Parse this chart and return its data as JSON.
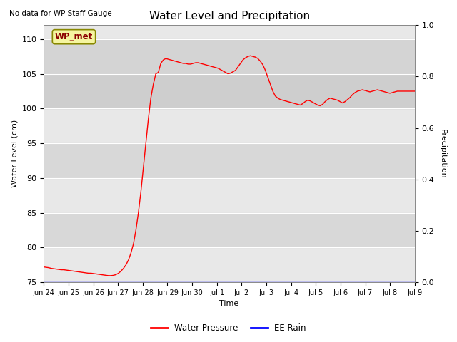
{
  "title": "Water Level and Precipitation",
  "top_left_text": "No data for WP Staff Gauge",
  "ylabel_left": "Water Level (cm)",
  "ylabel_right": "Precipitation",
  "xlabel": "Time",
  "legend_entries": [
    "Water Pressure",
    "EE Rain"
  ],
  "legend_colors": [
    "red",
    "blue"
  ],
  "ylim_left": [
    75,
    112
  ],
  "ylim_right": [
    0,
    1.0
  ],
  "yticks_left": [
    75,
    80,
    85,
    90,
    95,
    100,
    105,
    110
  ],
  "yticks_right": [
    0.0,
    0.2,
    0.4,
    0.6,
    0.8,
    1.0
  ],
  "xtick_labels": [
    "Jun 24",
    "Jun 25",
    "Jun 26",
    "Jun 27",
    "Jun 28",
    "Jun 29",
    "Jun 30",
    "Jul 1",
    "Jul 2",
    "Jul 3",
    "Jul 4",
    "Jul 5",
    "Jul 6",
    "Jul 7",
    "Jul 8",
    "Jul 9"
  ],
  "band_color": "#d8d8d8",
  "band_ranges": [
    [
      80,
      85
    ],
    [
      90,
      95
    ],
    [
      100,
      105
    ]
  ],
  "wp_met_label": "WP_met",
  "wp_met_bg": "#f5f5a0",
  "wp_met_border": "#888800",
  "line_color": "red",
  "blue_line_color": "blue",
  "bg_color": "#e8e8e8",
  "water_level_data": [
    77.2,
    77.15,
    77.1,
    77.0,
    76.95,
    76.9,
    76.85,
    76.8,
    76.8,
    76.75,
    76.7,
    76.65,
    76.6,
    76.55,
    76.5,
    76.45,
    76.4,
    76.35,
    76.3,
    76.3,
    76.25,
    76.2,
    76.15,
    76.1,
    76.05,
    76.0,
    75.95,
    75.95,
    76.0,
    76.1,
    76.3,
    76.6,
    77.0,
    77.5,
    78.2,
    79.2,
    80.5,
    82.5,
    85.0,
    88.0,
    91.5,
    95.0,
    98.5,
    101.5,
    103.5,
    105.0,
    105.2,
    106.5,
    107.0,
    107.2,
    107.1,
    107.0,
    106.9,
    106.8,
    106.7,
    106.6,
    106.5,
    106.5,
    106.4,
    106.4,
    106.5,
    106.6,
    106.6,
    106.5,
    106.4,
    106.3,
    106.2,
    106.1,
    106.0,
    105.9,
    105.8,
    105.6,
    105.4,
    105.2,
    105.0,
    105.1,
    105.3,
    105.5,
    106.0,
    106.5,
    107.0,
    107.3,
    107.5,
    107.6,
    107.5,
    107.4,
    107.2,
    106.8,
    106.3,
    105.5,
    104.5,
    103.5,
    102.5,
    101.8,
    101.5,
    101.3,
    101.2,
    101.1,
    101.0,
    100.9,
    100.8,
    100.7,
    100.6,
    100.5,
    100.7,
    101.0,
    101.2,
    101.1,
    100.9,
    100.7,
    100.5,
    100.4,
    100.6,
    101.0,
    101.3,
    101.5,
    101.4,
    101.3,
    101.2,
    101.0,
    100.8,
    101.0,
    101.3,
    101.6,
    102.0,
    102.3,
    102.5,
    102.6,
    102.7,
    102.6,
    102.5,
    102.4,
    102.5,
    102.6,
    102.7,
    102.6,
    102.5,
    102.4,
    102.3,
    102.2,
    102.3,
    102.4,
    102.5,
    102.5,
    102.5,
    102.5,
    102.5,
    102.5,
    102.5,
    102.5
  ]
}
